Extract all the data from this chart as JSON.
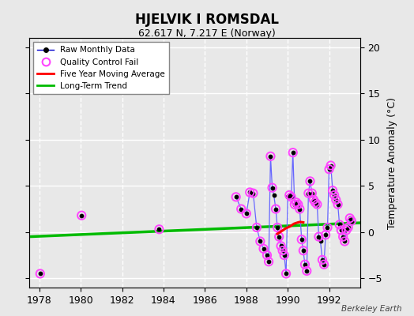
{
  "title": "HJELVIK I ROMSDAL",
  "subtitle": "62.617 N, 7.217 E (Norway)",
  "ylabel": "Temperature Anomaly (°C)",
  "watermark": "Berkeley Earth",
  "xlim": [
    1977.5,
    1993.5
  ],
  "ylim": [
    -6,
    21
  ],
  "yticks": [
    -5,
    0,
    5,
    10,
    15,
    20
  ],
  "xticks": [
    1978,
    1980,
    1982,
    1984,
    1986,
    1988,
    1990,
    1992
  ],
  "bg_color": "#e8e8e8",
  "grid_color": "#ffffff",
  "raw_line_color": "#6666ff",
  "raw_marker_color": "#000000",
  "qc_color": "#ff44ff",
  "moving_avg_color": "#ff0000",
  "trend_color": "#00bb00",
  "legend_raw_color": "#0000cc",
  "raw_segments": [
    [
      [
        1978.04,
        -4.5
      ]
    ],
    [
      [
        1980.04,
        1.8
      ]
    ],
    [
      [
        1983.79,
        0.3
      ]
    ],
    [
      [
        1987.5,
        3.8
      ],
      [
        1987.75,
        2.5
      ],
      [
        1988.0,
        2.0
      ],
      [
        1988.17,
        4.3
      ],
      [
        1988.33,
        4.2
      ],
      [
        1988.5,
        0.5
      ],
      [
        1988.67,
        -1.0
      ],
      [
        1988.83,
        -1.8
      ],
      [
        1989.0,
        -2.5
      ],
      [
        1989.08,
        -3.2
      ],
      [
        1989.17,
        8.2
      ],
      [
        1989.25,
        4.8
      ],
      [
        1989.33,
        4.0
      ],
      [
        1989.42,
        2.5
      ],
      [
        1989.5,
        0.5
      ],
      [
        1989.58,
        -0.5
      ],
      [
        1989.67,
        -1.5
      ],
      [
        1989.75,
        -2.0
      ],
      [
        1989.83,
        -2.5
      ],
      [
        1989.92,
        -4.5
      ],
      [
        1990.0,
        3.8
      ],
      [
        1990.08,
        4.0
      ],
      [
        1990.17,
        3.8
      ],
      [
        1990.25,
        8.6
      ],
      [
        1990.33,
        3.0
      ],
      [
        1990.42,
        3.2
      ],
      [
        1990.5,
        3.0
      ],
      [
        1990.58,
        2.5
      ],
      [
        1990.67,
        -0.8
      ],
      [
        1990.75,
        -2.0
      ],
      [
        1990.83,
        -3.5
      ],
      [
        1990.92,
        -4.2
      ],
      [
        1991.0,
        4.2
      ],
      [
        1991.08,
        5.5
      ],
      [
        1991.17,
        4.2
      ],
      [
        1991.25,
        3.5
      ],
      [
        1991.33,
        3.2
      ],
      [
        1991.42,
        3.0
      ],
      [
        1991.5,
        -0.5
      ],
      [
        1991.58,
        -1.0
      ],
      [
        1991.67,
        -3.0
      ],
      [
        1991.75,
        -3.5
      ],
      [
        1991.83,
        -0.3
      ],
      [
        1991.92,
        0.5
      ],
      [
        1992.0,
        6.8
      ],
      [
        1992.08,
        7.2
      ],
      [
        1992.17,
        4.5
      ],
      [
        1992.25,
        4.0
      ],
      [
        1992.33,
        3.5
      ],
      [
        1992.42,
        3.0
      ],
      [
        1992.5,
        0.8
      ],
      [
        1992.58,
        0.2
      ],
      [
        1992.67,
        -0.5
      ],
      [
        1992.75,
        -1.0
      ],
      [
        1992.83,
        0.2
      ],
      [
        1992.92,
        0.5
      ],
      [
        1993.0,
        1.5
      ],
      [
        1993.08,
        1.2
      ]
    ]
  ],
  "qc_fail_points": [
    [
      1978.04,
      -4.5
    ],
    [
      1980.04,
      1.8
    ],
    [
      1983.79,
      0.3
    ],
    [
      1987.5,
      3.8
    ],
    [
      1987.75,
      2.5
    ],
    [
      1988.0,
      2.0
    ],
    [
      1988.17,
      4.3
    ],
    [
      1988.33,
      4.2
    ],
    [
      1988.5,
      0.5
    ],
    [
      1988.67,
      -1.0
    ],
    [
      1988.83,
      -1.8
    ],
    [
      1989.0,
      -2.5
    ],
    [
      1989.08,
      -3.2
    ],
    [
      1989.17,
      8.2
    ],
    [
      1989.25,
      4.8
    ],
    [
      1989.42,
      2.5
    ],
    [
      1989.5,
      0.5
    ],
    [
      1989.58,
      -0.5
    ],
    [
      1989.67,
      -1.5
    ],
    [
      1989.75,
      -2.0
    ],
    [
      1989.83,
      -2.5
    ],
    [
      1989.92,
      -4.5
    ],
    [
      1990.08,
      4.0
    ],
    [
      1990.17,
      3.8
    ],
    [
      1990.25,
      8.6
    ],
    [
      1990.33,
      3.0
    ],
    [
      1990.42,
      3.2
    ],
    [
      1990.5,
      3.0
    ],
    [
      1990.58,
      2.5
    ],
    [
      1990.67,
      -0.8
    ],
    [
      1990.75,
      -2.0
    ],
    [
      1990.83,
      -3.5
    ],
    [
      1990.92,
      -4.2
    ],
    [
      1991.0,
      4.2
    ],
    [
      1991.08,
      5.5
    ],
    [
      1991.17,
      4.2
    ],
    [
      1991.25,
      3.5
    ],
    [
      1991.33,
      3.2
    ],
    [
      1991.42,
      3.0
    ],
    [
      1991.5,
      -0.5
    ],
    [
      1991.67,
      -3.0
    ],
    [
      1991.75,
      -3.5
    ],
    [
      1991.83,
      -0.3
    ],
    [
      1991.92,
      0.5
    ],
    [
      1992.0,
      6.8
    ],
    [
      1992.08,
      7.2
    ],
    [
      1992.17,
      4.5
    ],
    [
      1992.25,
      4.0
    ],
    [
      1992.33,
      3.5
    ],
    [
      1992.42,
      3.0
    ],
    [
      1992.5,
      0.8
    ],
    [
      1992.58,
      0.2
    ],
    [
      1992.67,
      -0.5
    ],
    [
      1992.75,
      -1.0
    ],
    [
      1992.83,
      0.2
    ],
    [
      1992.92,
      0.5
    ],
    [
      1993.0,
      1.5
    ],
    [
      1993.08,
      1.2
    ]
  ],
  "moving_avg": [
    [
      1989.5,
      -0.2
    ],
    [
      1989.7,
      0.1
    ],
    [
      1989.9,
      0.4
    ],
    [
      1990.1,
      0.6
    ],
    [
      1990.3,
      0.9
    ],
    [
      1990.5,
      1.05
    ],
    [
      1990.6,
      1.1
    ],
    [
      1990.75,
      1.05
    ]
  ],
  "trend_x": [
    1977.5,
    1993.5
  ],
  "trend_y": [
    -0.5,
    1.0
  ]
}
